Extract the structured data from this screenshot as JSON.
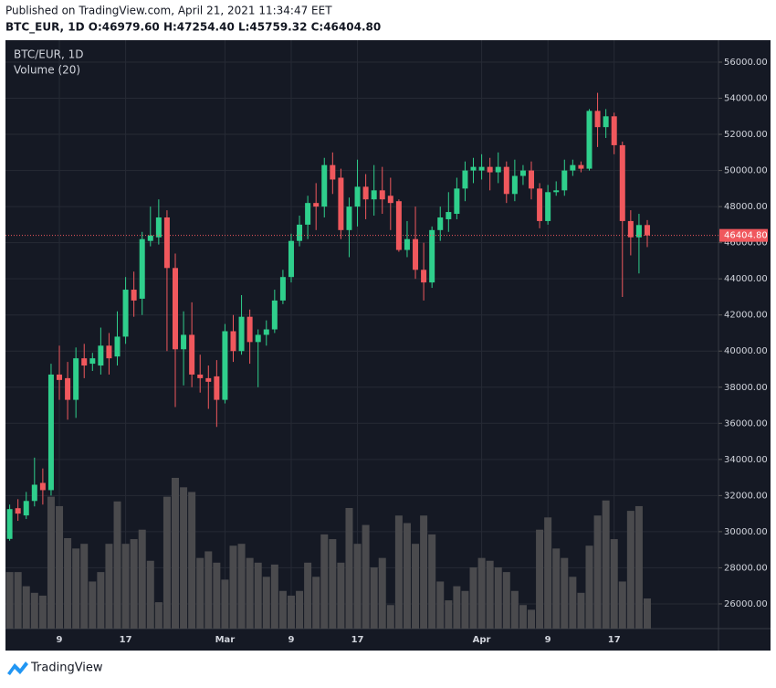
{
  "header": {
    "published": "Published on TradingView.com, April 21, 2021 11:34:47 EET",
    "ohlc_line": "BTC_EUR, 1D O:46979.60 H:47254.40 L:45759.32 C:46404.80"
  },
  "footer": {
    "brand": "TradingView"
  },
  "chart_data": {
    "type": "candlestick",
    "legend": {
      "symbol": "BTC/EUR, 1D",
      "volume": "Volume (20)"
    },
    "categories": [
      null,
      null,
      null,
      null,
      null,
      null,
      "9",
      null,
      null,
      null,
      null,
      null,
      null,
      null,
      "17",
      null,
      null,
      null,
      null,
      null,
      null,
      null,
      null,
      null,
      null,
      null,
      "Mar",
      null,
      null,
      null,
      null,
      null,
      null,
      null,
      "9",
      null,
      null,
      null,
      null,
      null,
      null,
      null,
      "17",
      null,
      null,
      null,
      null,
      null,
      null,
      null,
      null,
      null,
      null,
      null,
      null,
      null,
      null,
      "Apr",
      null,
      null,
      null,
      null,
      null,
      null,
      null,
      "9",
      null,
      null,
      null,
      null,
      null,
      null,
      null,
      "17",
      null,
      null,
      null,
      null
    ],
    "open": [
      29600,
      31300,
      30900,
      31700,
      32700,
      32300,
      38700,
      38500,
      37300,
      39600,
      39300,
      39200,
      40300,
      39700,
      40800,
      43400,
      42900,
      46100,
      46300,
      47400,
      44600,
      40100,
      40900,
      38700,
      38500,
      38600,
      37300,
      41100,
      40000,
      41900,
      40500,
      40900,
      41200,
      42800,
      44100,
      46100,
      47000,
      48200,
      48000,
      50300,
      49600,
      46700,
      48000,
      49100,
      48400,
      48900,
      48600,
      48300,
      45600,
      46200,
      44500,
      43800,
      46700,
      47300,
      47600,
      49000,
      50000,
      50000,
      50200,
      49900,
      50200,
      48700,
      49700,
      50000,
      49000,
      47200,
      48800,
      48900,
      50000,
      50300,
      50100,
      53300,
      52400,
      53000,
      51400,
      47200,
      46300,
      46979.6
    ],
    "high": [
      31500,
      31800,
      32200,
      34100,
      33500,
      39300,
      40300,
      39400,
      40200,
      40400,
      39900,
      41300,
      41000,
      42200,
      44100,
      44400,
      46600,
      48000,
      48400,
      47800,
      45400,
      42200,
      42700,
      39800,
      39200,
      39500,
      41500,
      42000,
      43100,
      42300,
      41200,
      41700,
      43400,
      44500,
      46500,
      47500,
      48600,
      49300,
      50700,
      51000,
      50100,
      48500,
      50600,
      49800,
      50300,
      50200,
      49600,
      48400,
      47200,
      48000,
      46000,
      46900,
      48000,
      48800,
      49600,
      50500,
      50700,
      50900,
      50700,
      51000,
      50500,
      50600,
      50300,
      50500,
      49300,
      49200,
      49400,
      50600,
      50600,
      50500,
      53400,
      54300,
      53400,
      53200,
      51600,
      47800,
      47600,
      47254.4
    ],
    "low": [
      29500,
      30600,
      30700,
      31400,
      31500,
      32000,
      37300,
      36200,
      36300,
      38500,
      38900,
      38700,
      38700,
      39200,
      40400,
      41900,
      42000,
      45800,
      45900,
      40000,
      36900,
      38100,
      38000,
      37700,
      36800,
      35800,
      37100,
      39400,
      39800,
      39300,
      38000,
      40300,
      41000,
      42600,
      43800,
      45800,
      46200,
      46700,
      47400,
      48700,
      46200,
      45200,
      46900,
      47300,
      47500,
      47600,
      46700,
      45500,
      45200,
      44000,
      42800,
      43500,
      46100,
      46600,
      47300,
      48300,
      49300,
      49500,
      48900,
      49300,
      48200,
      48300,
      49200,
      48400,
      46800,
      47000,
      48600,
      48600,
      49700,
      49900,
      50000,
      51300,
      51800,
      50900,
      43000,
      45300,
      44300,
      45759.32
    ],
    "close": [
      31250,
      31000,
      31700,
      32600,
      32300,
      38700,
      38400,
      37300,
      39600,
      39200,
      39600,
      40300,
      39600,
      40800,
      43400,
      42800,
      46200,
      46400,
      47400,
      44600,
      40100,
      40900,
      38700,
      38500,
      38300,
      37300,
      41100,
      40000,
      41900,
      40500,
      40900,
      41200,
      42800,
      44100,
      46100,
      47000,
      48200,
      48000,
      50300,
      49500,
      46700,
      48000,
      49100,
      48400,
      48900,
      48400,
      48200,
      45600,
      46200,
      44500,
      43800,
      46700,
      47400,
      47700,
      49000,
      50000,
      50200,
      50200,
      49900,
      50200,
      48700,
      49700,
      50000,
      49000,
      47200,
      48800,
      48900,
      50000,
      50300,
      50100,
      53300,
      52400,
      53000,
      51400,
      47200,
      46300,
      46979.6,
      46404.8
    ],
    "volume": [
      60,
      60,
      45,
      38,
      35,
      140,
      130,
      96,
      85,
      90,
      50,
      60,
      90,
      135,
      90,
      95,
      105,
      72,
      28,
      140,
      160,
      150,
      145,
      75,
      82,
      70,
      52,
      88,
      90,
      75,
      70,
      55,
      68,
      40,
      35,
      40,
      70,
      55,
      100,
      95,
      70,
      128,
      90,
      110,
      65,
      75,
      25,
      120,
      112,
      90,
      120,
      100,
      50,
      30,
      45,
      40,
      65,
      75,
      72,
      65,
      60,
      40,
      25,
      20,
      105,
      118,
      85,
      75,
      55,
      38,
      88,
      120,
      136,
      95,
      50,
      125,
      130,
      32
    ],
    "up_color": "#2fcf8c",
    "down_color": "#f0585d",
    "volume_color": "#4a4a4d",
    "last_price": {
      "value": 46404.8,
      "label": "46404.80"
    },
    "ylim": [
      24632,
      57214
    ],
    "yticks": [
      {
        "value": 26000,
        "label": "26000.00"
      },
      {
        "value": 28000,
        "label": "28000.00"
      },
      {
        "value": 30000,
        "label": "30000.00"
      },
      {
        "value": 32000,
        "label": "32000.00"
      },
      {
        "value": 34000,
        "label": "34000.00"
      },
      {
        "value": 36000,
        "label": "36000.00"
      },
      {
        "value": 38000,
        "label": "38000.00"
      },
      {
        "value": 40000,
        "label": "40000.00"
      },
      {
        "value": 42000,
        "label": "42000.00"
      },
      {
        "value": 44000,
        "label": "44000.00"
      },
      {
        "value": 46000,
        "label": "46000.00"
      },
      {
        "value": 48000,
        "label": "48000.00"
      },
      {
        "value": 50000,
        "label": "50000.00"
      },
      {
        "value": 52000,
        "label": "52000.00"
      },
      {
        "value": 54000,
        "label": "54000.00"
      },
      {
        "value": 56000,
        "label": "56000.00"
      }
    ],
    "grid": true
  }
}
